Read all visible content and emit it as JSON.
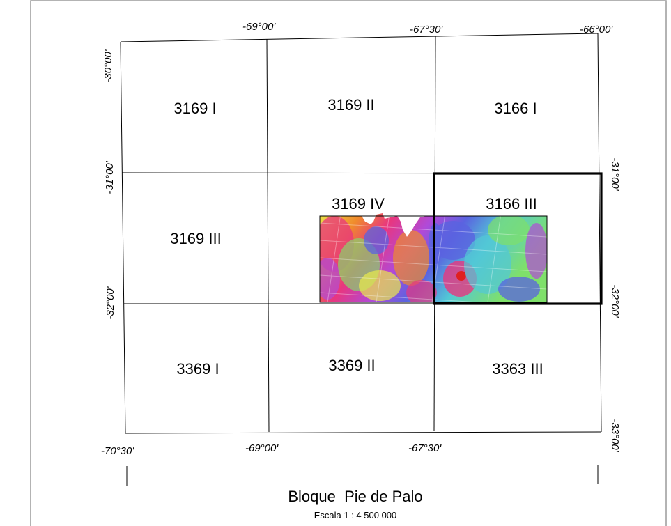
{
  "map": {
    "sheets": [
      {
        "id": "3169 I"
      },
      {
        "id": "3169 II"
      },
      {
        "id": "3166 I"
      },
      {
        "id": "3169 III"
      },
      {
        "id": "3169 IV"
      },
      {
        "id": "3166 III",
        "highlighted": true
      },
      {
        "id": "3369 I"
      },
      {
        "id": "3369 II"
      },
      {
        "id": "3363 III"
      }
    ],
    "top_longitudes": [
      "-69°00'",
      "-67°30'",
      "-66°00'"
    ],
    "bottom_longitudes": [
      "-70°30'",
      "-69°00'",
      "-67°30'"
    ],
    "left_latitudes": [
      "-30°00'",
      "-31°00'",
      "-32°00'"
    ],
    "right_latitudes": [
      "-31°00'",
      "-32°00'",
      "-33°00'"
    ],
    "title": "Bloque  Pie de Palo",
    "scale": "Escala 1 : 4 500 000",
    "colors": {
      "frame": "#9a9a9a",
      "grid": "#000000",
      "raster_palette": [
        "#e9e94a",
        "#f08a2c",
        "#e8367f",
        "#b04ad8",
        "#5a63e0",
        "#52c8d6",
        "#7fe06a"
      ]
    }
  }
}
